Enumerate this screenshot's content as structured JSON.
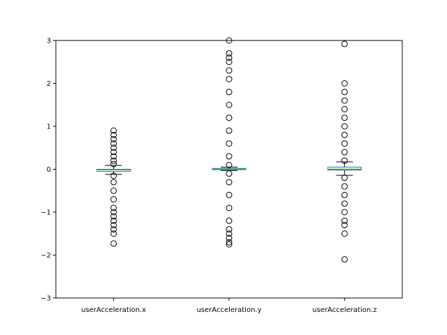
{
  "chart_data": {
    "type": "box",
    "title": "",
    "xlabel": "",
    "ylabel": "",
    "ylim": [
      -3,
      3
    ],
    "yticks": [
      -3,
      -2,
      -1,
      0,
      1,
      2,
      3
    ],
    "ytick_labels": [
      "−3",
      "−2",
      "−1",
      "0",
      "1",
      "2",
      "3"
    ],
    "grid": false,
    "colors": {
      "box": "#1f77b4",
      "median": "#2ca02c",
      "whisker": "#000000",
      "flier": "#000000"
    },
    "series": [
      {
        "name": "userAcceleration.x",
        "q1": -0.05,
        "median": -0.01,
        "q3": 0.0,
        "whislo": -0.12,
        "whishi": 0.09,
        "fliers_high": [
          0.12,
          0.2,
          0.3,
          0.4,
          0.5,
          0.6,
          0.7,
          0.8,
          0.9
        ],
        "fliers_low": [
          -0.15,
          -0.3,
          -0.5,
          -0.7,
          -0.9,
          -1.0,
          -1.1,
          -1.2,
          -1.3,
          -1.4,
          -1.5,
          -1.73
        ]
      },
      {
        "name": "userAcceleration.y",
        "q1": -0.01,
        "median": 0.0,
        "q3": 0.02,
        "whislo": -0.03,
        "whishi": 0.05,
        "fliers_high": [
          0.1,
          0.3,
          0.6,
          0.9,
          1.2,
          1.5,
          1.8,
          2.1,
          2.3,
          2.5,
          2.6,
          2.7,
          3.0
        ],
        "fliers_low": [
          -0.1,
          -0.3,
          -0.6,
          -0.9,
          -1.2,
          -1.4,
          -1.5,
          -1.6,
          -1.7,
          -1.75
        ]
      },
      {
        "name": "userAcceleration.z",
        "q1": -0.02,
        "median": 0.0,
        "q3": 0.05,
        "whislo": -0.14,
        "whishi": 0.17,
        "fliers_high": [
          0.2,
          0.4,
          0.6,
          0.8,
          1.0,
          1.2,
          1.4,
          1.6,
          1.8,
          2.0,
          2.92
        ],
        "fliers_low": [
          -0.2,
          -0.4,
          -0.6,
          -0.8,
          -1.0,
          -1.2,
          -1.3,
          -1.5,
          -2.1
        ]
      }
    ]
  }
}
